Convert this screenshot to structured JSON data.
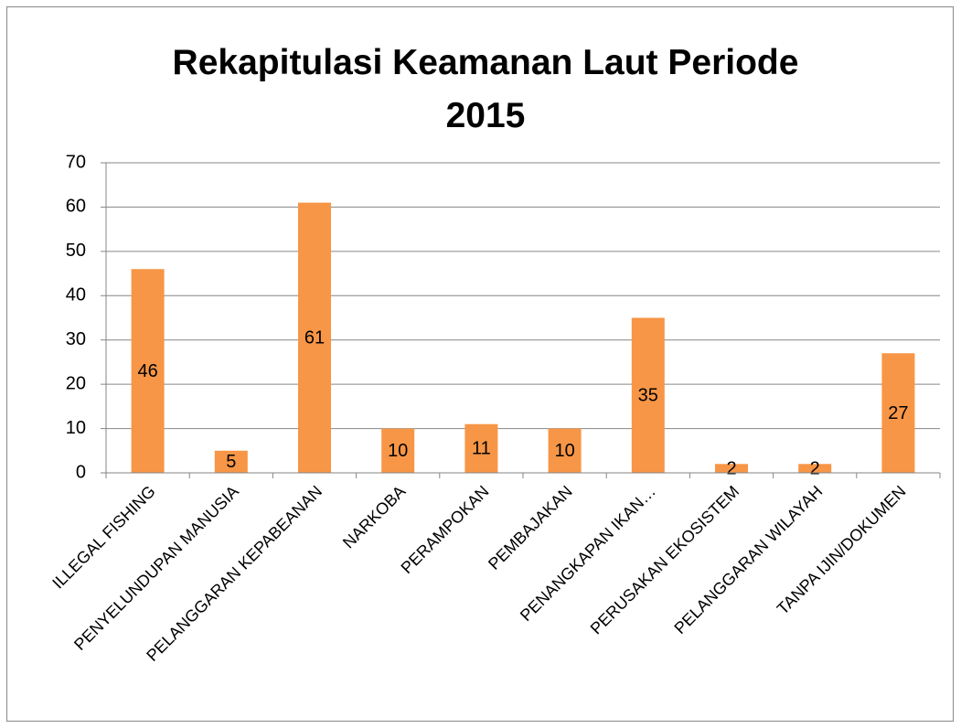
{
  "chart_data": {
    "type": "bar",
    "title": "Rekapitulasi Keamanan Laut Periode 2015",
    "categories": [
      "ILLEGAL FISHING",
      "PENYELUNDUPAN MANUSIA",
      "PELANGGARAN KEPABEANAN",
      "NARKOBA",
      "PERAMPOKAN",
      "PEMBAJAKAN",
      "PENANGKAPAN IKAN…",
      "PERUSAKAN EKOSISTEM",
      "PELANGGARAN WILAYAH",
      "TANPA IJIN/DOKUMEN"
    ],
    "values": [
      46,
      5,
      61,
      10,
      11,
      10,
      35,
      2,
      2,
      27
    ],
    "color": "#f79646",
    "ylim": [
      0,
      70
    ],
    "yticks": [
      0,
      10,
      20,
      30,
      40,
      50,
      60,
      70
    ],
    "grid": true
  }
}
